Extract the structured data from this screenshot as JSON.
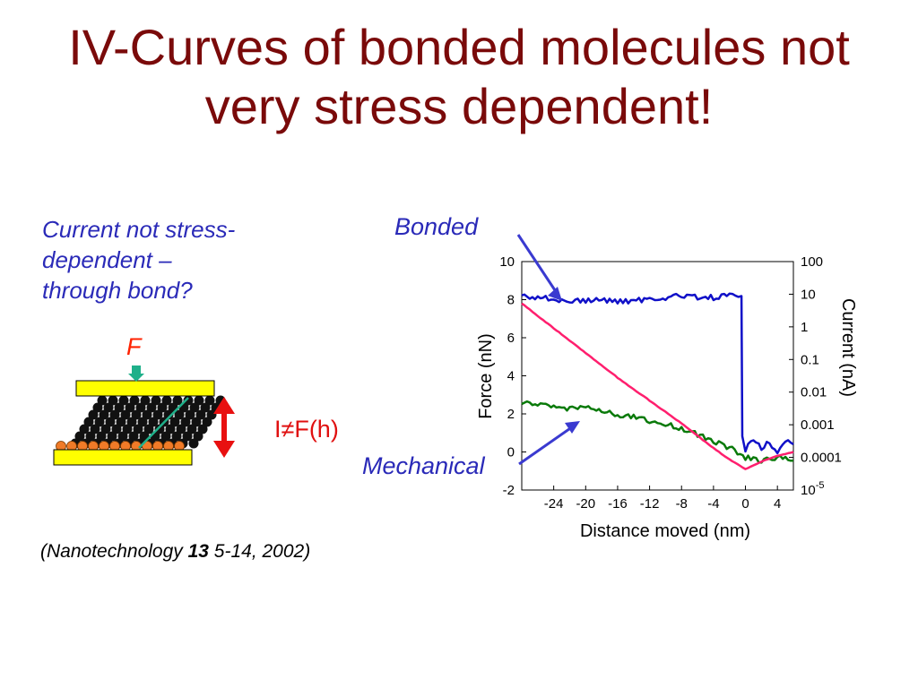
{
  "title_line1": "IV-Curves of bonded molecules not",
  "title_line2": "very stress dependent!",
  "note_lines": [
    "Current not stress-",
    "dependent –",
    "through bond?"
  ],
  "force_label": "F",
  "current_relation": "I≠F(h)",
  "citation": {
    "prefix": "(Nanotechnology ",
    "volume": "13",
    "suffix": " 5-14, 2002)"
  },
  "colors": {
    "title": "#7a0a0a",
    "note": "#2a2ab8",
    "bonded": "#1010c8",
    "mechanical": "#0a7a0a",
    "force": "#ff1f6e",
    "arrow": "#e81010",
    "plate": "#ffff00",
    "molecule_head": "#f07b28",
    "pointer": "#3a3ad0"
  },
  "chart_data": {
    "type": "line",
    "xlabel": "Distance moved (nm)",
    "ylabel_left": "Force (nN)",
    "ylabel_right": "Current (nA)",
    "xlim": [
      -28,
      6
    ],
    "ylim_left": [
      -2,
      10
    ],
    "x_ticks": [
      "-24",
      "-20",
      "-16",
      "-12",
      "-8",
      "-4",
      "0",
      "4"
    ],
    "x_tick_values": [
      -24,
      -20,
      -16,
      -12,
      -8,
      -4,
      0,
      4
    ],
    "y_left_ticks": [
      "-2",
      "0",
      "2",
      "4",
      "6",
      "8",
      "10"
    ],
    "y_left_tick_values": [
      -2,
      0,
      2,
      4,
      6,
      8,
      10
    ],
    "y_right_ticks": [
      "10-5",
      "0.0001",
      "0.001",
      "0.01",
      "0.1",
      "1",
      "10",
      "100"
    ],
    "y_right_tick_values": [
      -5,
      -4,
      -3,
      -2,
      -1,
      0,
      1,
      2
    ],
    "ylim_right_log10": [
      -5,
      2
    ],
    "series": [
      {
        "name": "Bonded",
        "axis": "right_log10",
        "color": "#1010c8",
        "x": [
          -28,
          -26,
          -24,
          -22,
          -20,
          -18,
          -16,
          -14,
          -12,
          -10,
          -8,
          -6,
          -4,
          -2,
          -0.5,
          -0.4,
          0,
          1,
          2,
          3,
          4,
          5,
          6
        ],
        "y": [
          0.95,
          0.9,
          0.85,
          0.78,
          0.8,
          0.82,
          0.78,
          0.8,
          0.85,
          0.9,
          0.95,
          0.92,
          0.9,
          0.95,
          0.9,
          -3.3,
          -3.8,
          -3.4,
          -3.7,
          -3.5,
          -3.9,
          -3.5,
          -3.6
        ]
      },
      {
        "name": "Mechanical",
        "axis": "right_log10",
        "color": "#0a7a0a",
        "x": [
          -28,
          -26,
          -24,
          -22,
          -20,
          -18,
          -16,
          -14,
          -12,
          -10,
          -8,
          -6,
          -4,
          -2,
          0,
          2,
          4,
          6
        ],
        "y": [
          -2.3,
          -2.4,
          -2.45,
          -2.5,
          -2.4,
          -2.6,
          -2.7,
          -2.75,
          -2.9,
          -3.0,
          -3.1,
          -3.3,
          -3.5,
          -3.7,
          -4.0,
          -4.1,
          -4.0,
          -4.1
        ]
      },
      {
        "name": "Force",
        "axis": "left",
        "color": "#ff1f6e",
        "x": [
          -28,
          -24,
          -20,
          -16,
          -12,
          -8,
          -4,
          -2,
          0,
          2,
          4,
          6
        ],
        "y": [
          7.8,
          6.5,
          5.2,
          3.9,
          2.7,
          1.5,
          0.2,
          -0.4,
          -0.9,
          -0.5,
          -0.2,
          0.0
        ]
      }
    ],
    "annotations": [
      "Bonded",
      "Mechanical"
    ]
  }
}
